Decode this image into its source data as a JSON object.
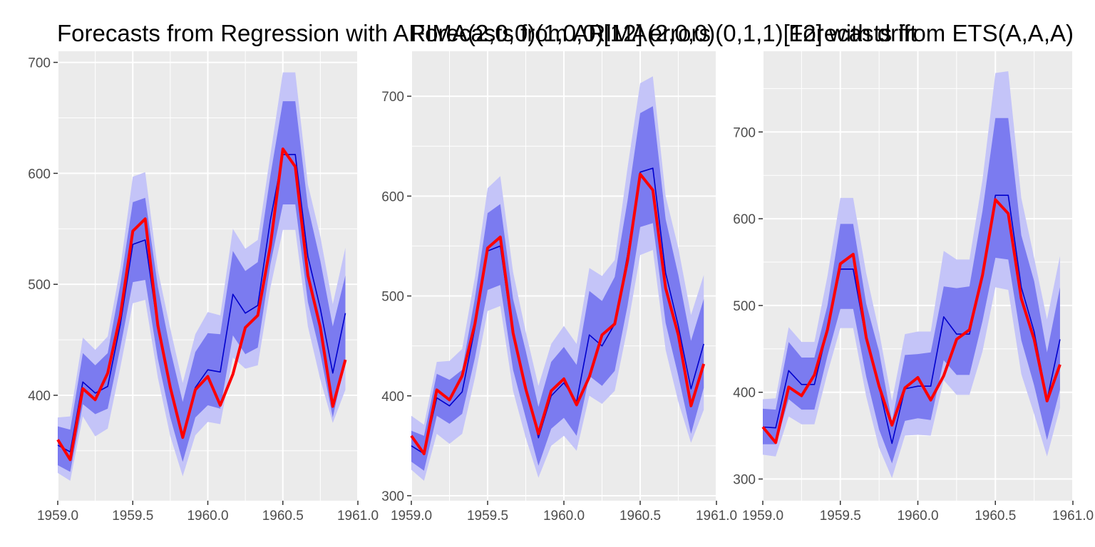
{
  "colors": {
    "panel_background": "#ebebeb",
    "grid": "#ffffff",
    "tick": "#333333",
    "pi80": "#7b7bf0",
    "pi95": "#c4c4f8",
    "forecast_line": "#0000cc",
    "actual_line": "#ff0000"
  },
  "chart_data": [
    {
      "type": "line",
      "title": "Forecasts from Regression with ARIMA(2,0,0)(1,0,0)[12] errors",
      "xlim": [
        1959.0,
        1961.0
      ],
      "ylim": [
        305,
        710
      ],
      "x_ticks": [
        1959.0,
        1959.5,
        1960.0,
        1960.5,
        1961.0
      ],
      "x_tick_labels": [
        "1959.0",
        "1959.5",
        "1960.0",
        "1960.5",
        "1961.0"
      ],
      "y_ticks": [
        400,
        500,
        600,
        700
      ],
      "y_tick_labels": [
        "400",
        "500",
        "600",
        "700"
      ],
      "grid": true,
      "x": [
        1959.0,
        1959.083,
        1959.167,
        1959.25,
        1959.333,
        1959.417,
        1959.5,
        1959.583,
        1959.667,
        1959.75,
        1959.833,
        1959.917,
        1960.0,
        1960.083,
        1960.167,
        1960.25,
        1960.333,
        1960.417,
        1960.5,
        1960.583,
        1960.667,
        1960.75,
        1960.833,
        1960.917
      ],
      "series": [
        {
          "role": "forecast",
          "values": [
            355,
            349,
            412,
            402,
            408,
            464,
            536,
            540,
            461,
            406,
            363,
            407,
            423,
            421,
            491,
            474,
            481,
            558,
            617,
            617,
            525,
            478,
            420,
            474
          ]
        },
        {
          "role": "lower_80",
          "values": [
            337,
            331,
            392,
            383,
            388,
            443,
            502,
            504,
            433,
            380,
            340,
            380,
            391,
            388,
            454,
            437,
            443,
            518,
            572,
            572,
            484,
            437,
            380,
            432
          ]
        },
        {
          "role": "upper_80",
          "values": [
            372,
            369,
            438,
            427,
            438,
            500,
            574,
            578,
            498,
            441,
            394,
            439,
            456,
            455,
            530,
            512,
            520,
            598,
            665,
            665,
            570,
            521,
            462,
            508
          ]
        },
        {
          "role": "lower_95",
          "values": [
            330,
            323,
            381,
            363,
            370,
            425,
            483,
            486,
            416,
            363,
            327,
            364,
            376,
            374,
            434,
            424,
            427,
            497,
            549,
            549,
            462,
            414,
            375,
            405
          ]
        },
        {
          "role": "upper_95",
          "values": [
            380,
            381,
            452,
            441,
            453,
            515,
            597,
            601,
            513,
            460,
            411,
            455,
            475,
            472,
            550,
            532,
            540,
            617,
            691,
            691,
            590,
            543,
            482,
            533
          ]
        },
        {
          "role": "actual",
          "values": [
            360,
            342,
            406,
            396,
            420,
            472,
            548,
            559,
            463,
            407,
            362,
            405,
            417,
            391,
            419,
            461,
            472,
            535,
            622,
            606,
            508,
            461,
            390,
            432
          ]
        }
      ]
    },
    {
      "type": "line",
      "title": "Forecasts from ARIMA(2,0,0)(0,1,1)[12] with drift",
      "xlim": [
        1959.0,
        1961.0
      ],
      "ylim": [
        295,
        745
      ],
      "x_ticks": [
        1959.0,
        1959.5,
        1960.0,
        1960.5,
        1961.0
      ],
      "x_tick_labels": [
        "1959.0",
        "1959.5",
        "1960.0",
        "1960.5",
        "1961.0"
      ],
      "y_ticks": [
        300,
        400,
        500,
        600,
        700
      ],
      "y_tick_labels": [
        "300",
        "400",
        "500",
        "600",
        "700"
      ],
      "grid": true,
      "x": [
        1959.0,
        1959.083,
        1959.167,
        1959.25,
        1959.333,
        1959.417,
        1959.5,
        1959.583,
        1959.667,
        1959.75,
        1959.833,
        1959.917,
        1960.0,
        1960.083,
        1960.167,
        1960.25,
        1960.333,
        1960.417,
        1960.5,
        1960.583,
        1960.667,
        1960.75,
        1960.833,
        1960.917
      ],
      "series": [
        {
          "role": "forecast",
          "values": [
            350,
            342,
            398,
            390,
            404,
            468,
            545,
            550,
            460,
            410,
            358,
            400,
            413,
            394,
            461,
            450,
            472,
            541,
            624,
            628,
            523,
            470,
            407,
            452
          ]
        },
        {
          "role": "lower_80",
          "values": [
            334,
            325,
            380,
            372,
            382,
            438,
            506,
            511,
            426,
            378,
            330,
            367,
            378,
            360,
            420,
            410,
            425,
            490,
            569,
            573,
            473,
            420,
            362,
            408
          ]
        },
        {
          "role": "upper_80",
          "values": [
            365,
            360,
            422,
            416,
            426,
            498,
            583,
            592,
            497,
            445,
            389,
            434,
            449,
            431,
            505,
            495,
            519,
            595,
            683,
            690,
            577,
            521,
            455,
            497
          ]
        },
        {
          "role": "lower_95",
          "values": [
            326,
            315,
            362,
            352,
            362,
            418,
            485,
            490,
            405,
            358,
            318,
            350,
            360,
            345,
            400,
            392,
            405,
            468,
            541,
            546,
            446,
            394,
            353,
            386
          ]
        },
        {
          "role": "upper_95",
          "values": [
            380,
            371,
            434,
            435,
            447,
            519,
            608,
            620,
            524,
            464,
            410,
            452,
            470,
            452,
            528,
            520,
            536,
            628,
            713,
            720,
            600,
            548,
            481,
            521
          ]
        },
        {
          "role": "actual",
          "values": [
            360,
            342,
            406,
            396,
            420,
            472,
            548,
            559,
            463,
            407,
            362,
            405,
            417,
            391,
            419,
            461,
            472,
            535,
            622,
            606,
            508,
            461,
            390,
            432
          ]
        }
      ]
    },
    {
      "type": "line",
      "title": "Forecasts from ETS(A,A,A)",
      "xlim": [
        1959.0,
        1961.0
      ],
      "ylim": [
        275,
        793
      ],
      "x_ticks": [
        1959.0,
        1959.5,
        1960.0,
        1960.5,
        1961.0
      ],
      "x_tick_labels": [
        "1959.0",
        "1959.5",
        "1960.0",
        "1960.5",
        "1961.0"
      ],
      "y_ticks": [
        300,
        400,
        500,
        600,
        700
      ],
      "y_tick_labels": [
        "300",
        "400",
        "500",
        "600",
        "700"
      ],
      "grid": true,
      "x": [
        1959.0,
        1959.083,
        1959.167,
        1959.25,
        1959.333,
        1959.417,
        1959.5,
        1959.583,
        1959.667,
        1959.75,
        1959.833,
        1959.917,
        1960.0,
        1960.083,
        1960.167,
        1960.25,
        1960.333,
        1960.417,
        1960.5,
        1960.583,
        1960.667,
        1960.75,
        1960.833,
        1960.917
      ],
      "series": [
        {
          "role": "forecast",
          "values": [
            360,
            359,
            425,
            409,
            409,
            472,
            542,
            542,
            460,
            406,
            341,
            404,
            407,
            407,
            487,
            467,
            467,
            536,
            627,
            627,
            521,
            470,
            391,
            461
          ]
        },
        {
          "role": "lower_80",
          "values": [
            340,
            340,
            392,
            380,
            380,
            442,
            496,
            496,
            418,
            357,
            318,
            367,
            370,
            368,
            437,
            420,
            420,
            482,
            555,
            553,
            460,
            408,
            345,
            403
          ]
        },
        {
          "role": "upper_80",
          "values": [
            381,
            380,
            458,
            440,
            440,
            500,
            594,
            594,
            502,
            447,
            366,
            443,
            444,
            446,
            522,
            520,
            522,
            609,
            716,
            716,
            581,
            528,
            446,
            521
          ]
        },
        {
          "role": "lower_95",
          "values": [
            328,
            326,
            372,
            363,
            363,
            422,
            474,
            474,
            395,
            336,
            301,
            350,
            351,
            350,
            414,
            397,
            397,
            447,
            521,
            518,
            421,
            375,
            326,
            382
          ]
        },
        {
          "role": "upper_95",
          "values": [
            392,
            393,
            475,
            458,
            458,
            534,
            624,
            624,
            537,
            470,
            390,
            467,
            470,
            470,
            563,
            553,
            553,
            645,
            768,
            770,
            624,
            555,
            484,
            557
          ]
        },
        {
          "role": "actual",
          "values": [
            360,
            342,
            406,
            396,
            420,
            472,
            548,
            559,
            463,
            407,
            362,
            405,
            417,
            391,
            419,
            461,
            472,
            535,
            622,
            606,
            508,
            461,
            390,
            432
          ]
        }
      ]
    }
  ]
}
